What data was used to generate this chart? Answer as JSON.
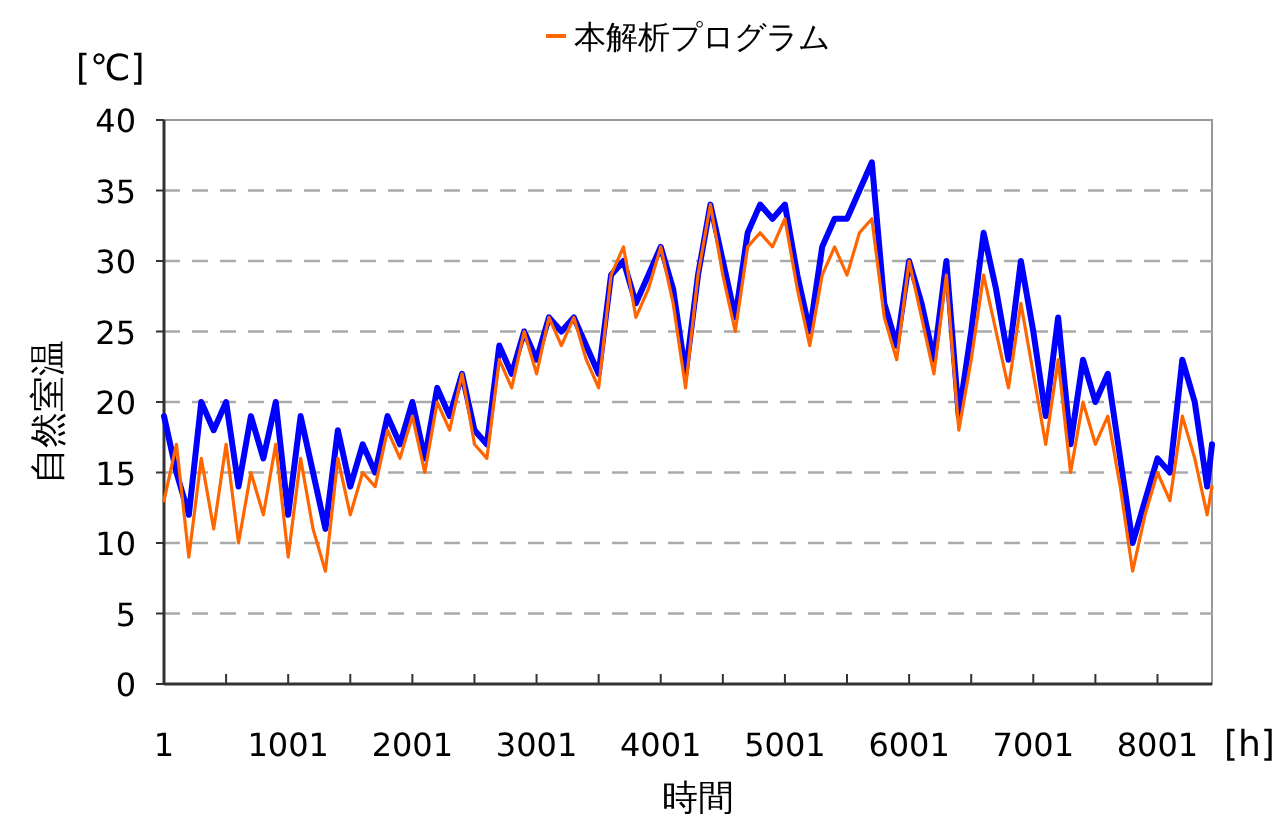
{
  "chart_data": {
    "type": "line",
    "xlabel": "時間",
    "ylabel": "自然室温",
    "annotations": [
      "[℃]",
      "[h]"
    ],
    "legend": "top",
    "grid": "y",
    "line_style": "solid",
    "marker": "none",
    "xlim": [
      1,
      8440
    ],
    "ylim": [
      0,
      40
    ],
    "xticks": [
      1,
      {
        "value": 501,
        "label": null
      },
      1001,
      {
        "value": 1501,
        "label": null
      },
      2001,
      {
        "value": 2501,
        "label": null
      },
      3001,
      {
        "value": 3501,
        "label": null
      },
      4001,
      {
        "value": 4501,
        "label": null
      },
      5001,
      {
        "value": 5501,
        "label": null
      },
      6001,
      {
        "value": 6501,
        "label": null
      },
      7001,
      {
        "value": 7501,
        "label": null
      },
      8001
    ],
    "yticks": [
      0,
      5,
      10,
      15,
      20,
      25,
      30,
      35,
      40
    ],
    "x": [
      1,
      101,
      201,
      301,
      401,
      501,
      601,
      701,
      801,
      901,
      1001,
      1101,
      1201,
      1301,
      1401,
      1501,
      1601,
      1701,
      1801,
      1901,
      2001,
      2101,
      2201,
      2301,
      2401,
      2501,
      2601,
      2701,
      2801,
      2901,
      3001,
      3101,
      3201,
      3301,
      3401,
      3501,
      3601,
      3701,
      3801,
      3901,
      4001,
      4101,
      4201,
      4301,
      4401,
      4501,
      4601,
      4701,
      4801,
      4901,
      5001,
      5101,
      5201,
      5301,
      5401,
      5501,
      5601,
      5701,
      5801,
      5901,
      6001,
      6101,
      6201,
      6301,
      6401,
      6501,
      6601,
      6701,
      6801,
      6901,
      7001,
      7101,
      7201,
      7301,
      7401,
      7501,
      7601,
      7701,
      7801,
      7901,
      8001,
      8101,
      8201,
      8301,
      8401,
      8440
    ],
    "series": [
      {
        "color": "#0000ff",
        "values": [
          19,
          15,
          12,
          20,
          18,
          20,
          14,
          19,
          16,
          20,
          12,
          19,
          15,
          11,
          18,
          14,
          17,
          15,
          19,
          17,
          20,
          16,
          21,
          19,
          22,
          18,
          17,
          24,
          22,
          25,
          23,
          26,
          25,
          26,
          24,
          22,
          29,
          30,
          27,
          29,
          31,
          28,
          22,
          29,
          34,
          30,
          26,
          32,
          34,
          33,
          34,
          29,
          25,
          31,
          33,
          33,
          35,
          37,
          27,
          24,
          30,
          27,
          23,
          30,
          19,
          25,
          32,
          28,
          23,
          30,
          25,
          19,
          26,
          17,
          23,
          20,
          22,
          16,
          10,
          13,
          16,
          15,
          23,
          20,
          14,
          17
        ]
      },
      {
        "name": "本解析プログラム",
        "color": "#ff6600",
        "values": [
          13,
          17,
          9,
          16,
          11,
          17,
          10,
          15,
          12,
          17,
          9,
          16,
          11,
          8,
          16,
          12,
          15,
          14,
          18,
          16,
          19,
          15,
          20,
          18,
          22,
          17,
          16,
          23,
          21,
          25,
          22,
          26,
          24,
          26,
          23,
          21,
          29,
          31,
          26,
          28,
          31,
          27,
          21,
          29,
          34,
          29,
          25,
          31,
          32,
          31,
          33,
          28,
          24,
          29,
          31,
          29,
          32,
          33,
          26,
          23,
          30,
          26,
          22,
          29,
          18,
          23,
          29,
          25,
          21,
          27,
          22,
          17,
          23,
          15,
          20,
          17,
          19,
          14,
          8,
          12,
          15,
          13,
          19,
          16,
          12,
          14
        ]
      }
    ]
  }
}
